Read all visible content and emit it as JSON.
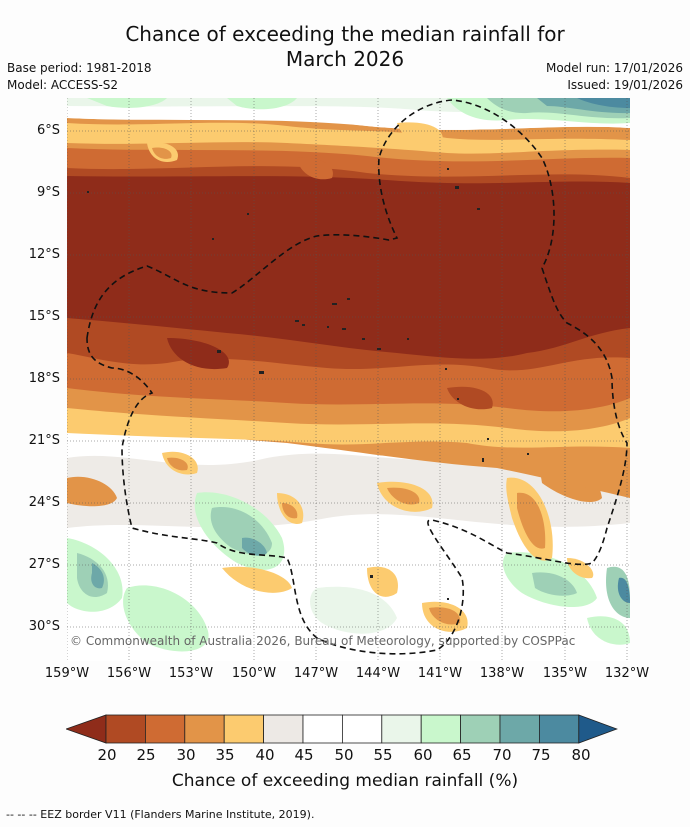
{
  "title_line1": "Chance of exceeding the median rainfall for",
  "title_line2": "March 2026",
  "base_period": "Base period: 1981-2018",
  "model": "Model: ACCESS-S2",
  "model_run": "Model run: 17/01/2026",
  "issued": "Issued: 19/01/2026",
  "lat_labels": [
    "6°S",
    "9°S",
    "12°S",
    "15°S",
    "18°S",
    "21°S",
    "24°S",
    "27°S",
    "30°S"
  ],
  "lon_labels": [
    "159°W",
    "156°W",
    "153°W",
    "150°W",
    "147°W",
    "144°W",
    "141°W",
    "138°W",
    "135°W",
    "132°W"
  ],
  "copyright": "© Commonwealth of Australia 2026, Bureau of Meteorology, supported by COSPPac",
  "colorbar": {
    "ticks": [
      "20",
      "25",
      "30",
      "35",
      "40",
      "45",
      "50",
      "55",
      "60",
      "65",
      "70",
      "75",
      "80"
    ],
    "colors": [
      "#8f2c1a",
      "#b04a23",
      "#cf6b33",
      "#e29448",
      "#fccb6f",
      "#ede9e5",
      "#ffffff",
      "#ffffff",
      "#eaf6ea",
      "#c9f7cc",
      "#9ed0b6",
      "#6da8a8",
      "#4c8aa0",
      "#1f5a8a"
    ],
    "label": "Chance of exceeding median rainfall (%)"
  },
  "footnote": "-- -- -- EEZ border V11 (Flanders Marine Institute, 2019)."
}
